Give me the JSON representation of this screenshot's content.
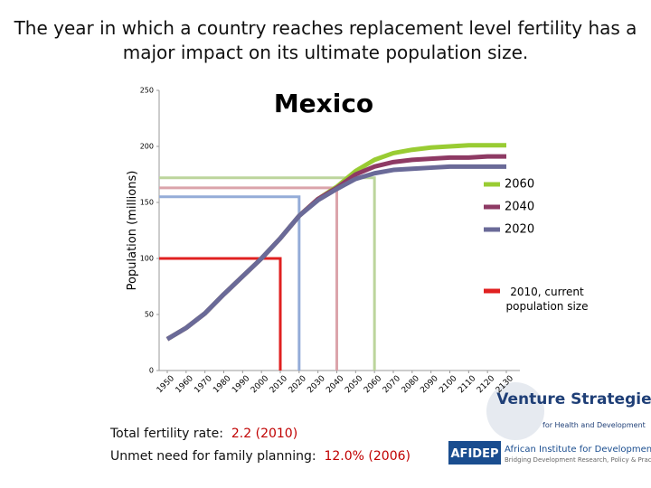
{
  "chart_data": {
    "type": "line",
    "title": "The year in which a country reaches replacement level fertility has a major impact on its ultimate population size.",
    "subtitle": "Mexico",
    "y_label": "Population (millions)",
    "x": [
      1950,
      1960,
      1970,
      1980,
      1990,
      2000,
      2010,
      2020,
      2030,
      2040,
      2050,
      2060,
      2070,
      2080,
      2090,
      2100,
      2110,
      2120,
      2130
    ],
    "xlim": [
      1950,
      2130
    ],
    "xticks": [
      1950,
      1960,
      1970,
      1980,
      1990,
      2000,
      2010,
      2020,
      2030,
      2040,
      2050,
      2060,
      2070,
      2080,
      2090,
      2100,
      2110,
      2120,
      2130
    ],
    "ylim": [
      0,
      250
    ],
    "yticks": [
      0,
      50,
      100,
      150,
      200,
      250
    ],
    "series": [
      {
        "name": "2060",
        "color": "#99cc33",
        "values": [
          28,
          38,
          51,
          68,
          84,
          100,
          118,
          138,
          153,
          164,
          178,
          188,
          194,
          197,
          199,
          200,
          201,
          201,
          201
        ]
      },
      {
        "name": "2040",
        "color": "#8e3a64",
        "values": [
          28,
          38,
          51,
          68,
          84,
          100,
          118,
          138,
          153,
          163,
          175,
          182,
          186,
          188,
          189,
          190,
          190,
          191,
          191
        ]
      },
      {
        "name": "2020",
        "color": "#6a6a98",
        "values": [
          28,
          38,
          51,
          68,
          84,
          100,
          118,
          138,
          152,
          162,
          171,
          176,
          179,
          180,
          181,
          182,
          182,
          182,
          182
        ]
      }
    ],
    "reference_lines": [
      {
        "year": 2060,
        "level": 172,
        "color": "#bcd59c"
      },
      {
        "year": 2040,
        "level": 163,
        "color": "#dba4ab"
      },
      {
        "year": 2020,
        "level": 155,
        "color": "#94acd8"
      },
      {
        "year": 2010,
        "level": 100,
        "color": "#e02020",
        "name": "2010, current population size"
      }
    ]
  },
  "notes": [
    {
      "label": "Total fertility rate:",
      "value": "2.2",
      "year": "(2010)"
    },
    {
      "label": "Unmet need for family planning:",
      "value": "12.0%",
      "year": "(2006)"
    }
  ],
  "logos": {
    "venture": "Venture Strategies",
    "venture_sub": "for Health and Development",
    "afidep": "AFIDEP",
    "afidep_name": "African Institute for Development Policy",
    "afidep_sub": "Bridging Development Research, Policy & Practice"
  }
}
